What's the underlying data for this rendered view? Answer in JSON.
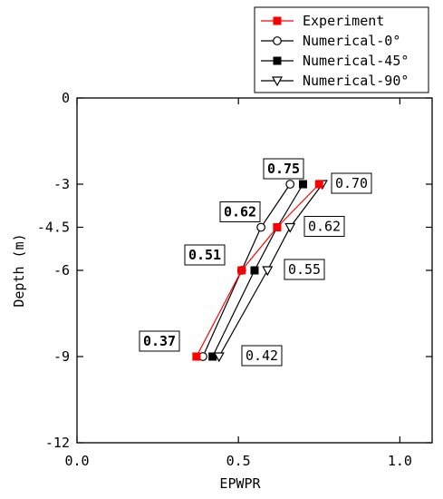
{
  "chart_data": {
    "type": "line",
    "xlabel": "EPWPR",
    "ylabel": "Depth (m)",
    "xlim": [
      0.0,
      1.1
    ],
    "ylim": [
      -12,
      0
    ],
    "xticks": [
      0.0,
      0.5,
      1.0
    ],
    "xtick_labels": [
      "0.0",
      "0.5",
      "1.0"
    ],
    "yticks": [
      0,
      -3,
      -4.5,
      -6,
      -9,
      -12
    ],
    "ytick_labels": [
      "0",
      "-3",
      "-4.5",
      "-6",
      "-9",
      "-12"
    ],
    "legend_position": "top-right, outside plot",
    "series": [
      {
        "name": "Experiment",
        "color": "#ff0000",
        "marker": "square-filled",
        "points": [
          {
            "x": 0.75,
            "y": -3
          },
          {
            "x": 0.62,
            "y": -4.5
          },
          {
            "x": 0.51,
            "y": -6
          },
          {
            "x": 0.37,
            "y": -9
          }
        ]
      },
      {
        "name": "Numerical-0°",
        "color": "#000000",
        "marker": "circle-open",
        "points": [
          {
            "x": 0.66,
            "y": -3
          },
          {
            "x": 0.57,
            "y": -4.5
          },
          {
            "x": 0.51,
            "y": -6
          },
          {
            "x": 0.39,
            "y": -9
          }
        ]
      },
      {
        "name": "Numerical-45°",
        "color": "#000000",
        "marker": "square-filled",
        "points": [
          {
            "x": 0.7,
            "y": -3
          },
          {
            "x": 0.62,
            "y": -4.5
          },
          {
            "x": 0.55,
            "y": -6
          },
          {
            "x": 0.42,
            "y": -9
          }
        ]
      },
      {
        "name": "Numerical-90°",
        "color": "#000000",
        "marker": "triangle-down-open",
        "points": [
          {
            "x": 0.76,
            "y": -3
          },
          {
            "x": 0.66,
            "y": -4.5
          },
          {
            "x": 0.59,
            "y": -6
          },
          {
            "x": 0.44,
            "y": -9
          }
        ]
      }
    ],
    "annotations": [
      {
        "text": "0.75",
        "bold": true,
        "side": "left",
        "y": -3
      },
      {
        "text": "0.62",
        "bold": true,
        "side": "left",
        "y": -4.5
      },
      {
        "text": "0.51",
        "bold": true,
        "side": "left",
        "y": -6
      },
      {
        "text": "0.37",
        "bold": true,
        "side": "left",
        "y": -9
      },
      {
        "text": "0.70",
        "bold": false,
        "side": "right",
        "y": -3
      },
      {
        "text": "0.62",
        "bold": false,
        "side": "right",
        "y": -4.5
      },
      {
        "text": "0.55",
        "bold": false,
        "side": "right",
        "y": -6
      },
      {
        "text": "0.42",
        "bold": false,
        "side": "right",
        "y": -9
      }
    ]
  }
}
